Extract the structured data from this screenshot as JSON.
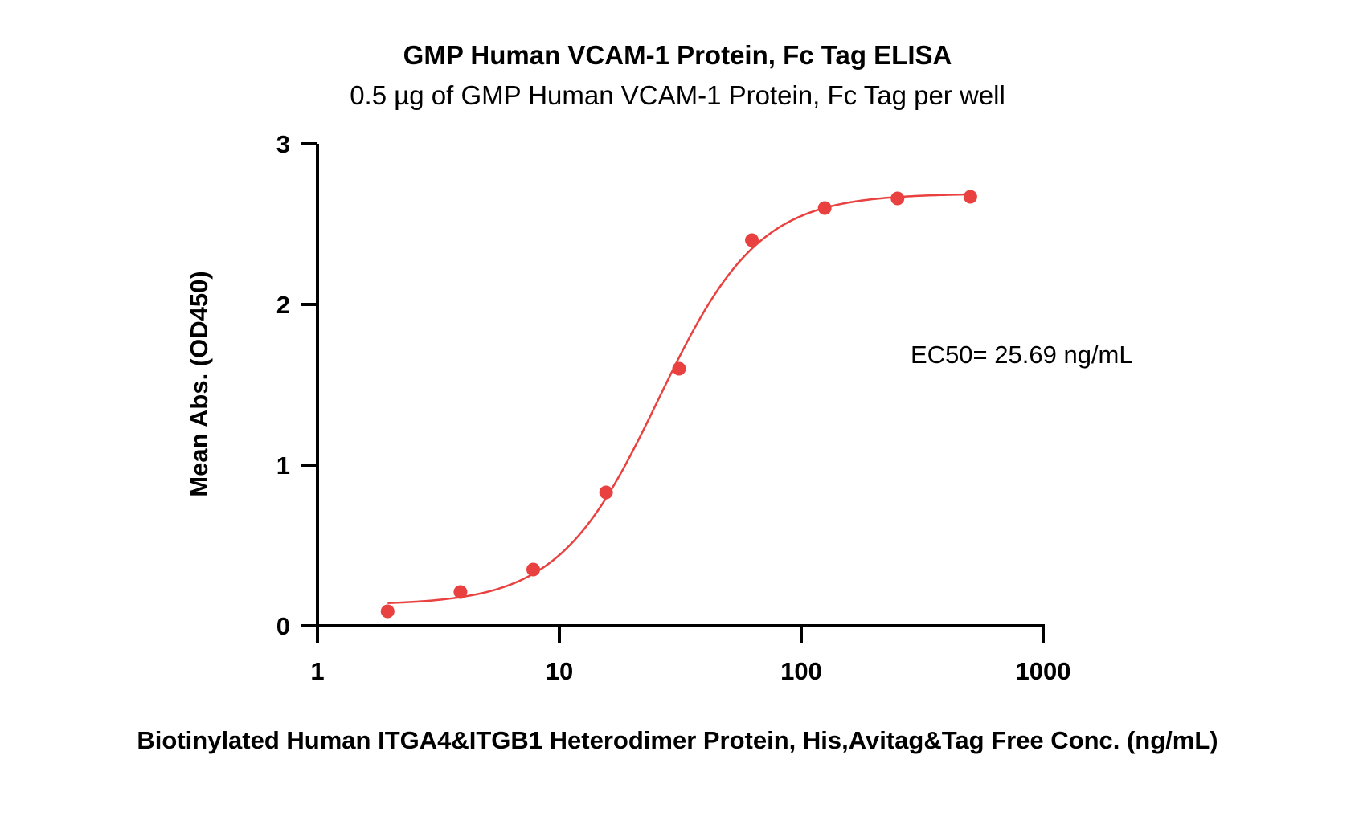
{
  "chart_data": {
    "type": "scatter",
    "title": "GMP Human VCAM-1 Protein, Fc Tag ELISA",
    "subtitle": "0.5 µg of GMP Human VCAM-1 Protein, Fc Tag per well",
    "xlabel": "Biotinylated Human ITGA4&ITGB1 Heterodimer Protein, His,Avitag&Tag Free Conc. (ng/mL)",
    "ylabel": "Mean Abs. (OD450)",
    "xscale": "log",
    "xlim": [
      1,
      1000
    ],
    "ylim": [
      0,
      3
    ],
    "xticks": [
      1,
      10,
      100,
      1000
    ],
    "xtick_labels": [
      "1",
      "10",
      "100",
      "1000"
    ],
    "yticks": [
      0,
      1,
      2,
      3
    ],
    "ytick_labels": [
      "0",
      "1",
      "2",
      "3"
    ],
    "grid": false,
    "annotation": "EC50= 25.69 ng/mL",
    "series": [
      {
        "color": "#e8413f",
        "x": [
          1.95,
          3.9,
          7.8,
          15.6,
          31.25,
          62.5,
          125,
          250,
          500
        ],
        "y": [
          0.09,
          0.21,
          0.35,
          0.83,
          1.6,
          2.4,
          2.6,
          2.66,
          2.67
        ]
      }
    ],
    "fit": {
      "type": "4PL",
      "color": "#e8413f",
      "bottom": 0.13,
      "top": 2.69,
      "ec50": 25.69,
      "hill": 2.1,
      "x_range": [
        1.95,
        500
      ]
    }
  }
}
